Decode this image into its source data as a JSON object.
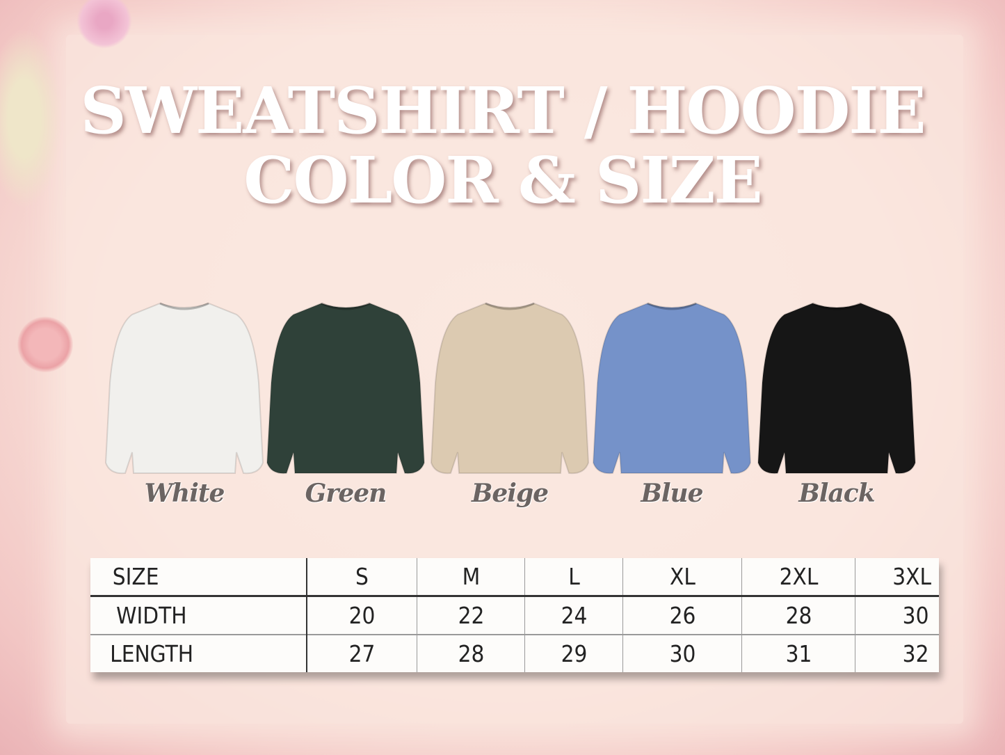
{
  "title": {
    "line1": "SWEATSHIRT / HOODIE",
    "line2": "COLOR & SIZE"
  },
  "colors": [
    {
      "label": "White",
      "hex": "#f1f0ed"
    },
    {
      "label": "Green",
      "hex": "#2f4139"
    },
    {
      "label": "Beige",
      "hex": "#dccab1"
    },
    {
      "label": "Blue",
      "hex": "#7592c9"
    },
    {
      "label": "Black",
      "hex": "#161616"
    }
  ],
  "size_table": {
    "headers": [
      "SIZE",
      "S",
      "M",
      "L",
      "XL",
      "2XL",
      "3XL"
    ],
    "rows": [
      [
        "WIDTH",
        "20",
        "22",
        "24",
        "26",
        "28",
        "30"
      ],
      [
        "LENGTH",
        "27",
        "28",
        "29",
        "30",
        "31",
        "32"
      ]
    ]
  }
}
